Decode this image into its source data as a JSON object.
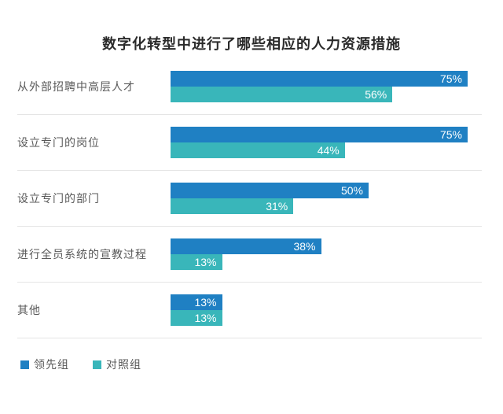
{
  "title": "数字化转型中进行了哪些相应的人力资源措施",
  "colors": {
    "leading_group": "#1f80c3",
    "control_group": "#39b6ba",
    "separator": "#e5e5e5",
    "category_text": "#595959",
    "value_text": "#ffffff",
    "title_text": "#2a2a2a"
  },
  "legend": [
    {
      "label": "领先组",
      "color": "#1f80c3"
    },
    {
      "label": "对照组",
      "color": "#39b6ba"
    }
  ],
  "chart_data": {
    "type": "bar",
    "orientation": "horizontal",
    "title": "数字化转型中进行了哪些相应的人力资源措施",
    "categories": [
      "从外部招聘中高层人才",
      "设立专门的岗位",
      "设立专门的部门",
      "进行全员系统的宣教过程",
      "其他"
    ],
    "series": [
      {
        "name": "领先组",
        "color": "#1f80c3",
        "values": [
          75,
          75,
          50,
          38,
          13
        ]
      },
      {
        "name": "对照组",
        "color": "#39b6ba",
        "values": [
          56,
          44,
          31,
          13,
          13
        ]
      }
    ],
    "value_suffix": "%",
    "value_labels": "inside-end",
    "axis_visible": false,
    "grid": false,
    "xlim": [
      0,
      100
    ],
    "legend_position": "bottom-left",
    "row_separators": true
  }
}
